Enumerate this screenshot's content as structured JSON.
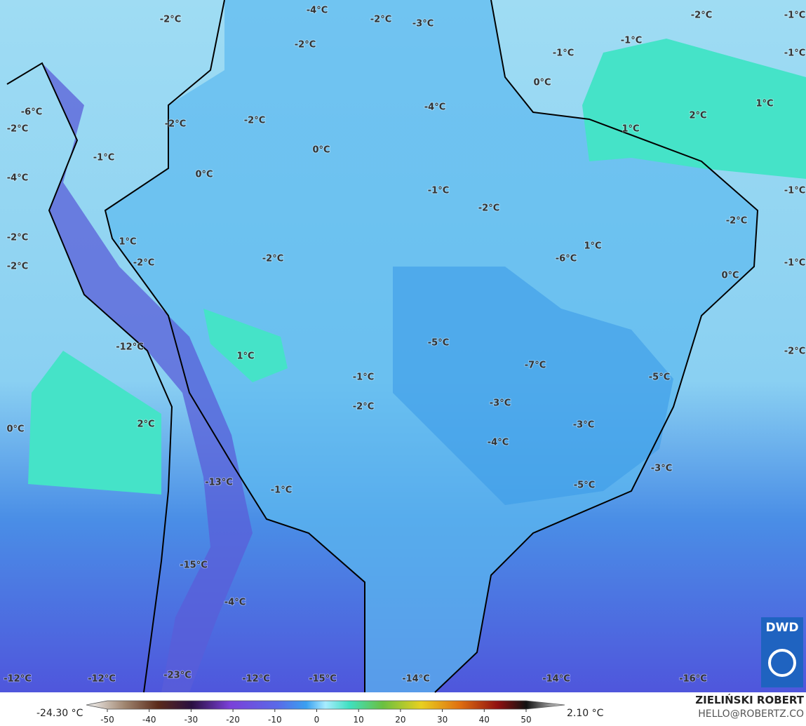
{
  "map": {
    "labels": [
      "-2°C",
      "-4°C",
      "-2°C",
      "-3°C",
      "-2°C",
      "-1°C",
      "-2°C",
      "-1°C",
      "-1°C",
      "-1°C",
      "0°C",
      "-4°C",
      "1°C",
      "2°C",
      "1°C",
      "-6°C",
      "-2°C",
      "-2°C",
      "-2°C",
      "0°C",
      "-1°C",
      "0°C",
      "-4°C",
      "-1°C",
      "-2°C",
      "-1°C",
      "-2°C",
      "-2°C",
      "1°C",
      "1°C",
      "-2°C",
      "-2°C",
      "-6°C",
      "-2°C",
      "-1°C",
      "0°C",
      "-5°C",
      "-12°C",
      "-2°C",
      "1°C",
      "-7°C",
      "-5°C",
      "-1°C",
      "-2°C",
      "-3°C",
      "-3°C",
      "0°C",
      "2°C",
      "-4°C",
      "-3°C",
      "-5°C",
      "-13°C",
      "-1°C",
      "-15°C",
      "-4°C",
      "-12°C",
      "-12°C",
      "-23°C",
      "-12°C",
      "-15°C",
      "-14°C",
      "-14°C",
      "-16°C"
    ]
  },
  "colorbar": {
    "min_label": "-24.30 °C",
    "max_label": "2.10 °C",
    "ticks": [
      -50,
      -40,
      -30,
      -20,
      -10,
      0,
      10,
      20,
      30,
      40,
      50
    ]
  },
  "credits": {
    "author": "ZIELIŃSKI ROBERT",
    "email": "HELLO@ROBERTZ.CO",
    "logo": "DWD"
  }
}
